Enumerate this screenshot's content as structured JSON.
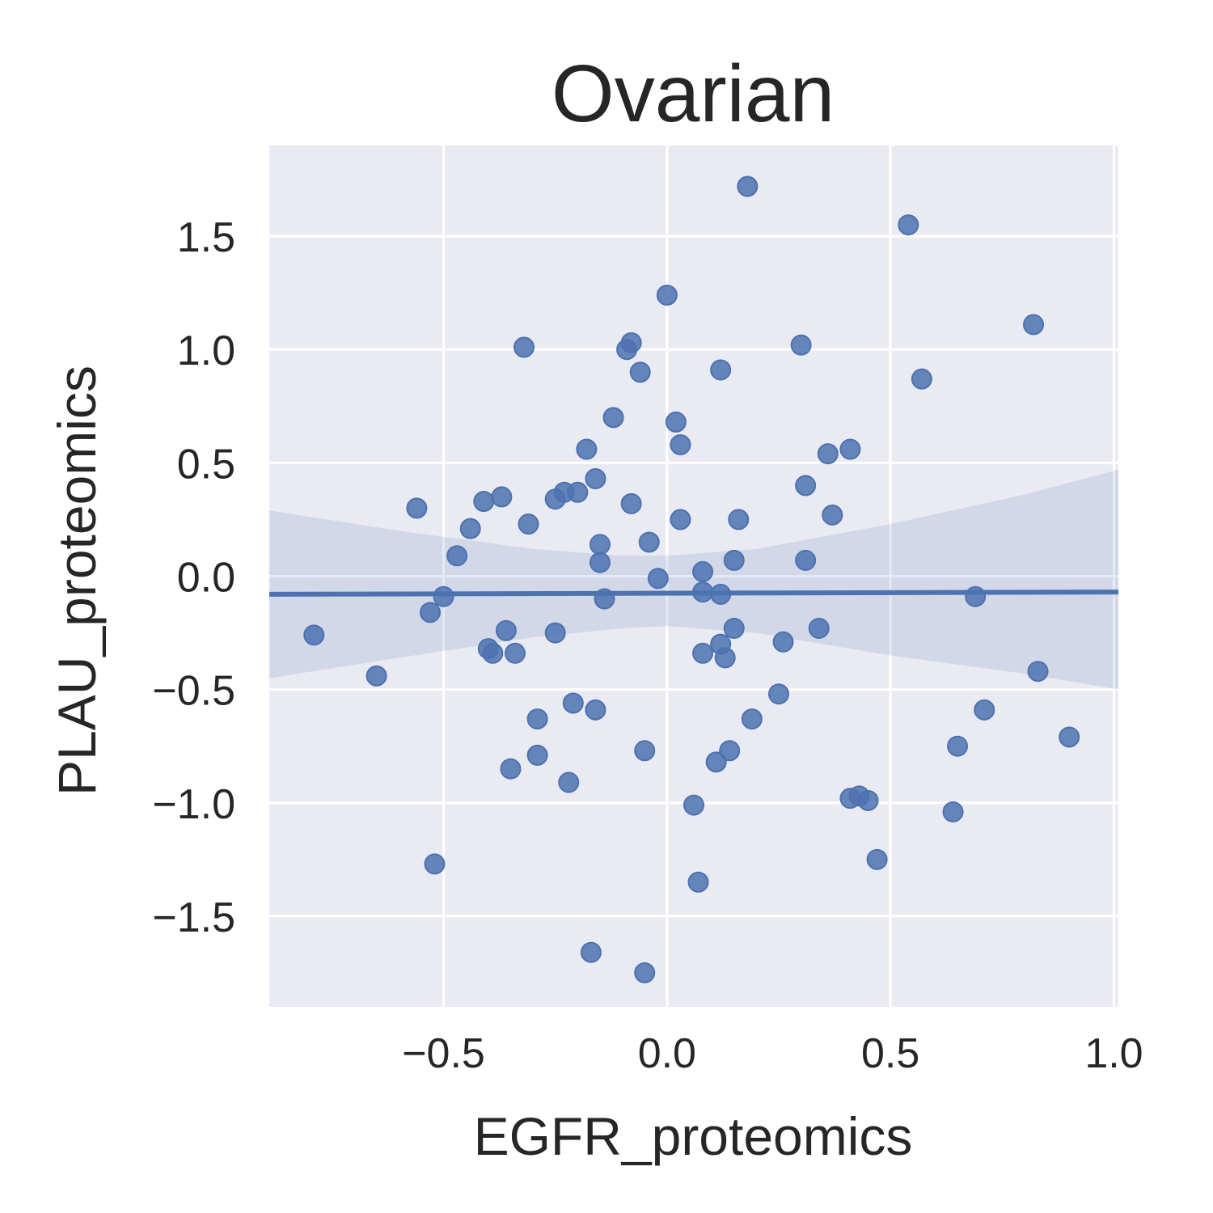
{
  "chart_data": {
    "type": "scatter",
    "title": "Ovarian",
    "xlabel": "EGFR_proteomics",
    "ylabel": "PLAU_proteomics",
    "xlim": [
      -0.89,
      1.01
    ],
    "ylim": [
      -1.9,
      1.9
    ],
    "x_ticks": [
      -0.5,
      0.0,
      0.5,
      1.0
    ],
    "x_tick_labels": [
      "−0.5",
      "0.0",
      "0.5",
      "1.0"
    ],
    "y_ticks": [
      1.5,
      1.0,
      0.5,
      0.0,
      -0.5,
      -1.0,
      -1.5
    ],
    "y_tick_labels": [
      "1.5",
      "1.0",
      "0.5",
      "0.0",
      "−0.5",
      "−1.0",
      "−1.5"
    ],
    "grid": true,
    "colors": {
      "background": "#eaeaf2",
      "grid": "#ffffff",
      "point": "#4c72b0",
      "line": "#4c72b0",
      "band": "#4c72b0"
    },
    "points": [
      {
        "x": 0.18,
        "y": 1.72
      },
      {
        "x": 0.54,
        "y": 1.55
      },
      {
        "x": 0.0,
        "y": 1.24
      },
      {
        "x": 0.82,
        "y": 1.11
      },
      {
        "x": -0.32,
        "y": 1.01
      },
      {
        "x": -0.08,
        "y": 1.03
      },
      {
        "x": -0.09,
        "y": 1.0
      },
      {
        "x": 0.3,
        "y": 1.02
      },
      {
        "x": -0.06,
        "y": 0.9
      },
      {
        "x": 0.12,
        "y": 0.91
      },
      {
        "x": 0.57,
        "y": 0.87
      },
      {
        "x": -0.12,
        "y": 0.7
      },
      {
        "x": 0.02,
        "y": 0.68
      },
      {
        "x": 0.03,
        "y": 0.58
      },
      {
        "x": -0.18,
        "y": 0.56
      },
      {
        "x": 0.41,
        "y": 0.56
      },
      {
        "x": 0.36,
        "y": 0.54
      },
      {
        "x": -0.16,
        "y": 0.43
      },
      {
        "x": 0.31,
        "y": 0.4
      },
      {
        "x": -0.37,
        "y": 0.35
      },
      {
        "x": -0.23,
        "y": 0.37
      },
      {
        "x": -0.2,
        "y": 0.37
      },
      {
        "x": -0.25,
        "y": 0.34
      },
      {
        "x": -0.41,
        "y": 0.33
      },
      {
        "x": -0.56,
        "y": 0.3
      },
      {
        "x": -0.08,
        "y": 0.32
      },
      {
        "x": 0.37,
        "y": 0.27
      },
      {
        "x": -0.31,
        "y": 0.23
      },
      {
        "x": 0.03,
        "y": 0.25
      },
      {
        "x": 0.16,
        "y": 0.25
      },
      {
        "x": -0.44,
        "y": 0.21
      },
      {
        "x": -0.04,
        "y": 0.15
      },
      {
        "x": -0.15,
        "y": 0.14
      },
      {
        "x": -0.47,
        "y": 0.09
      },
      {
        "x": 0.15,
        "y": 0.07
      },
      {
        "x": -0.15,
        "y": 0.06
      },
      {
        "x": 0.31,
        "y": 0.07
      },
      {
        "x": 0.08,
        "y": 0.02
      },
      {
        "x": -0.02,
        "y": -0.01
      },
      {
        "x": 0.08,
        "y": -0.07
      },
      {
        "x": 0.12,
        "y": -0.08
      },
      {
        "x": -0.5,
        "y": -0.09
      },
      {
        "x": -0.14,
        "y": -0.1
      },
      {
        "x": 0.69,
        "y": -0.09
      },
      {
        "x": -0.53,
        "y": -0.16
      },
      {
        "x": -0.36,
        "y": -0.24
      },
      {
        "x": -0.25,
        "y": -0.25
      },
      {
        "x": 0.15,
        "y": -0.23
      },
      {
        "x": 0.34,
        "y": -0.23
      },
      {
        "x": -0.79,
        "y": -0.26
      },
      {
        "x": 0.26,
        "y": -0.29
      },
      {
        "x": 0.12,
        "y": -0.3
      },
      {
        "x": -0.4,
        "y": -0.32
      },
      {
        "x": -0.39,
        "y": -0.34
      },
      {
        "x": -0.34,
        "y": -0.34
      },
      {
        "x": 0.08,
        "y": -0.34
      },
      {
        "x": 0.13,
        "y": -0.36
      },
      {
        "x": 0.83,
        "y": -0.42
      },
      {
        "x": -0.65,
        "y": -0.44
      },
      {
        "x": 0.25,
        "y": -0.52
      },
      {
        "x": -0.21,
        "y": -0.56
      },
      {
        "x": -0.16,
        "y": -0.59
      },
      {
        "x": 0.71,
        "y": -0.59
      },
      {
        "x": -0.29,
        "y": -0.63
      },
      {
        "x": 0.19,
        "y": -0.63
      },
      {
        "x": 0.9,
        "y": -0.71
      },
      {
        "x": 0.65,
        "y": -0.75
      },
      {
        "x": -0.05,
        "y": -0.77
      },
      {
        "x": 0.14,
        "y": -0.77
      },
      {
        "x": -0.29,
        "y": -0.79
      },
      {
        "x": 0.11,
        "y": -0.82
      },
      {
        "x": -0.35,
        "y": -0.85
      },
      {
        "x": -0.22,
        "y": -0.91
      },
      {
        "x": 0.41,
        "y": -0.98
      },
      {
        "x": 0.43,
        "y": -0.97
      },
      {
        "x": 0.45,
        "y": -0.99
      },
      {
        "x": 0.06,
        "y": -1.01
      },
      {
        "x": 0.64,
        "y": -1.04
      },
      {
        "x": 0.47,
        "y": -1.25
      },
      {
        "x": -0.52,
        "y": -1.27
      },
      {
        "x": 0.07,
        "y": -1.35
      },
      {
        "x": -0.17,
        "y": -1.66
      },
      {
        "x": -0.05,
        "y": -1.75
      }
    ],
    "regression": {
      "x": [
        -0.89,
        1.01
      ],
      "y": [
        -0.08,
        -0.07
      ]
    },
    "confidence_band": {
      "x": [
        -0.89,
        -0.6,
        -0.3,
        -0.1,
        0.0,
        0.2,
        0.5,
        0.8,
        1.01
      ],
      "upper": [
        0.29,
        0.2,
        0.12,
        0.09,
        0.09,
        0.12,
        0.23,
        0.36,
        0.47
      ],
      "lower": [
        -0.45,
        -0.36,
        -0.27,
        -0.23,
        -0.22,
        -0.25,
        -0.35,
        -0.43,
        -0.5
      ]
    }
  }
}
